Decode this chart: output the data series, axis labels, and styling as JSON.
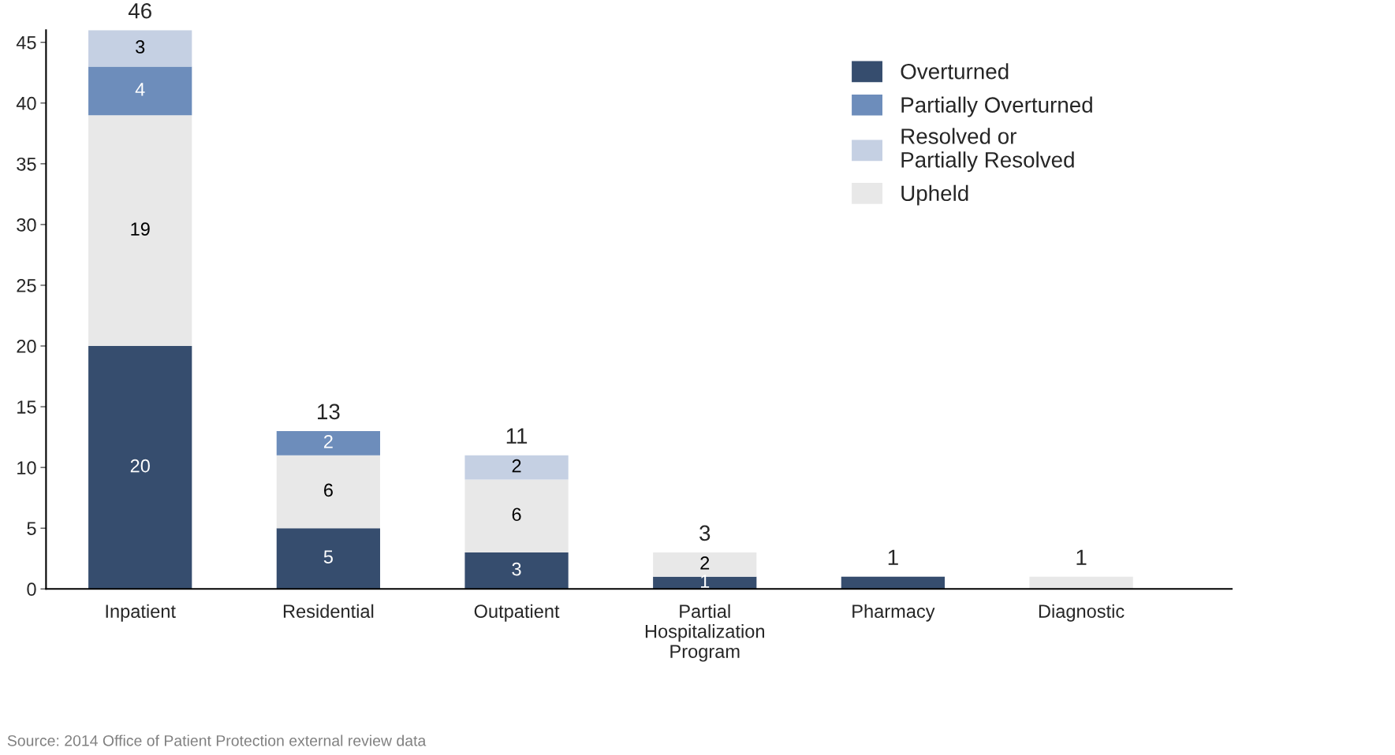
{
  "chart_data": {
    "type": "bar",
    "stacked": true,
    "categories": [
      "Inpatient",
      "Residential",
      "Outpatient",
      "Partial\nHospitalization\nProgram",
      "Pharmacy",
      "Diagnostic"
    ],
    "series": [
      {
        "name": "Overturned",
        "color": "#364d6e",
        "values": [
          20,
          5,
          3,
          1,
          1,
          null
        ],
        "value_labels": [
          "20",
          "5",
          "3",
          "1",
          null,
          null
        ]
      },
      {
        "name": "Upheld",
        "color": "#e8e8e8",
        "values": [
          19,
          6,
          6,
          2,
          null,
          1
        ],
        "value_labels": [
          "19",
          "6",
          "6",
          "2",
          null,
          null
        ]
      },
      {
        "name": "Partially Overturned",
        "color": "#6d8dbb",
        "values": [
          4,
          2,
          null,
          null,
          null,
          null
        ],
        "value_labels": [
          "4",
          "2",
          null,
          null,
          null,
          null
        ]
      },
      {
        "name": "Resolved or\nPartially Resolved",
        "color": "#c5d0e3",
        "values": [
          3,
          null,
          2,
          null,
          null,
          null
        ],
        "value_labels": [
          "3",
          null,
          "2",
          null,
          null,
          null
        ]
      }
    ],
    "totals": [
      "46",
      "13",
      "11",
      "3",
      "1",
      "1"
    ],
    "ylim": [
      0,
      46
    ],
    "yticks": [
      0,
      5,
      10,
      15,
      20,
      25,
      30,
      35,
      40,
      45
    ],
    "grid": false,
    "legend": "top right",
    "annotations": [
      "Source: 2014 Office of Patient Protection external review data"
    ]
  }
}
